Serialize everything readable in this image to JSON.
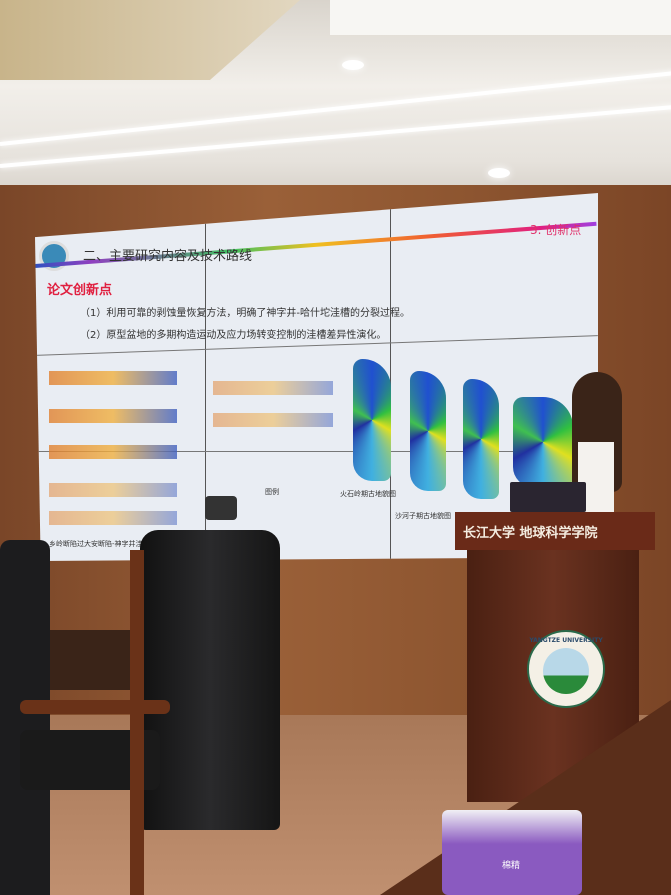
{
  "slide": {
    "title": "二、主要研究内容及技术路线",
    "section_tag": "3. 创新点",
    "heading": "论文创新点",
    "bullets": [
      "（1）利用可靠的剥蚀量恢复方法，明确了神字井-哈什坨洼槽的分裂过程。",
      "（2）原型盆地的多期构造运动及应力场转变控制的洼槽差异性演化。"
    ],
    "map_captions": [
      "火石岭期古地貌图",
      "沙河子期古地貌图"
    ],
    "section_caption": "乡岭断陷过大安断陷-神字井洼槽",
    "legend_label": "图例"
  },
  "podium": {
    "sign": "长江大学 地球科学学院",
    "emblem_text": "YANGTZE UNIVERSITY"
  },
  "tissue_box": {
    "label": "棉精"
  },
  "colors": {
    "wall": "#8a5530",
    "podium": "#6a2a18",
    "accent": "#e02040",
    "section_tag": "#e0306a"
  }
}
